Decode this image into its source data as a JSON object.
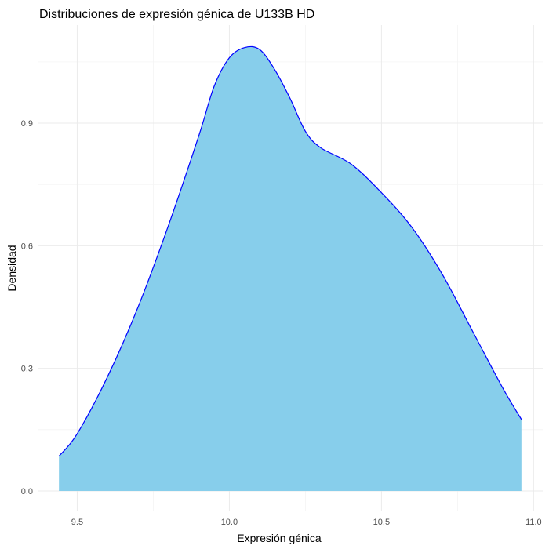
{
  "chart_data": {
    "type": "area",
    "title": "Distribuciones de expresión génica de U133B HD",
    "xlabel": "Expresión génica",
    "ylabel": "Densidad",
    "xlim": [
      9.37,
      11.03
    ],
    "ylim": [
      -0.05,
      1.14
    ],
    "x_ticks": [
      9.5,
      10.0,
      10.5,
      11.0
    ],
    "x_tick_labels": [
      "9.5",
      "10.0",
      "10.5",
      "11.0"
    ],
    "y_ticks": [
      0.0,
      0.3,
      0.6,
      0.9
    ],
    "y_tick_labels": [
      "0.0",
      "0.3",
      "0.6",
      "0.9"
    ],
    "grid": true,
    "legend": "none",
    "fill_color": "#87CEEB",
    "line_color": "#0000ff",
    "series": [
      {
        "x": [
          9.44,
          9.5,
          9.6,
          9.7,
          9.8,
          9.9,
          9.95,
          10.0,
          10.05,
          10.1,
          10.15,
          10.2,
          10.25,
          10.3,
          10.4,
          10.5,
          10.6,
          10.7,
          10.8,
          10.9,
          10.96
        ],
        "y": [
          0.085,
          0.14,
          0.28,
          0.45,
          0.65,
          0.87,
          0.99,
          1.06,
          1.085,
          1.08,
          1.03,
          0.96,
          0.88,
          0.84,
          0.8,
          0.73,
          0.645,
          0.53,
          0.39,
          0.25,
          0.175
        ]
      }
    ]
  }
}
